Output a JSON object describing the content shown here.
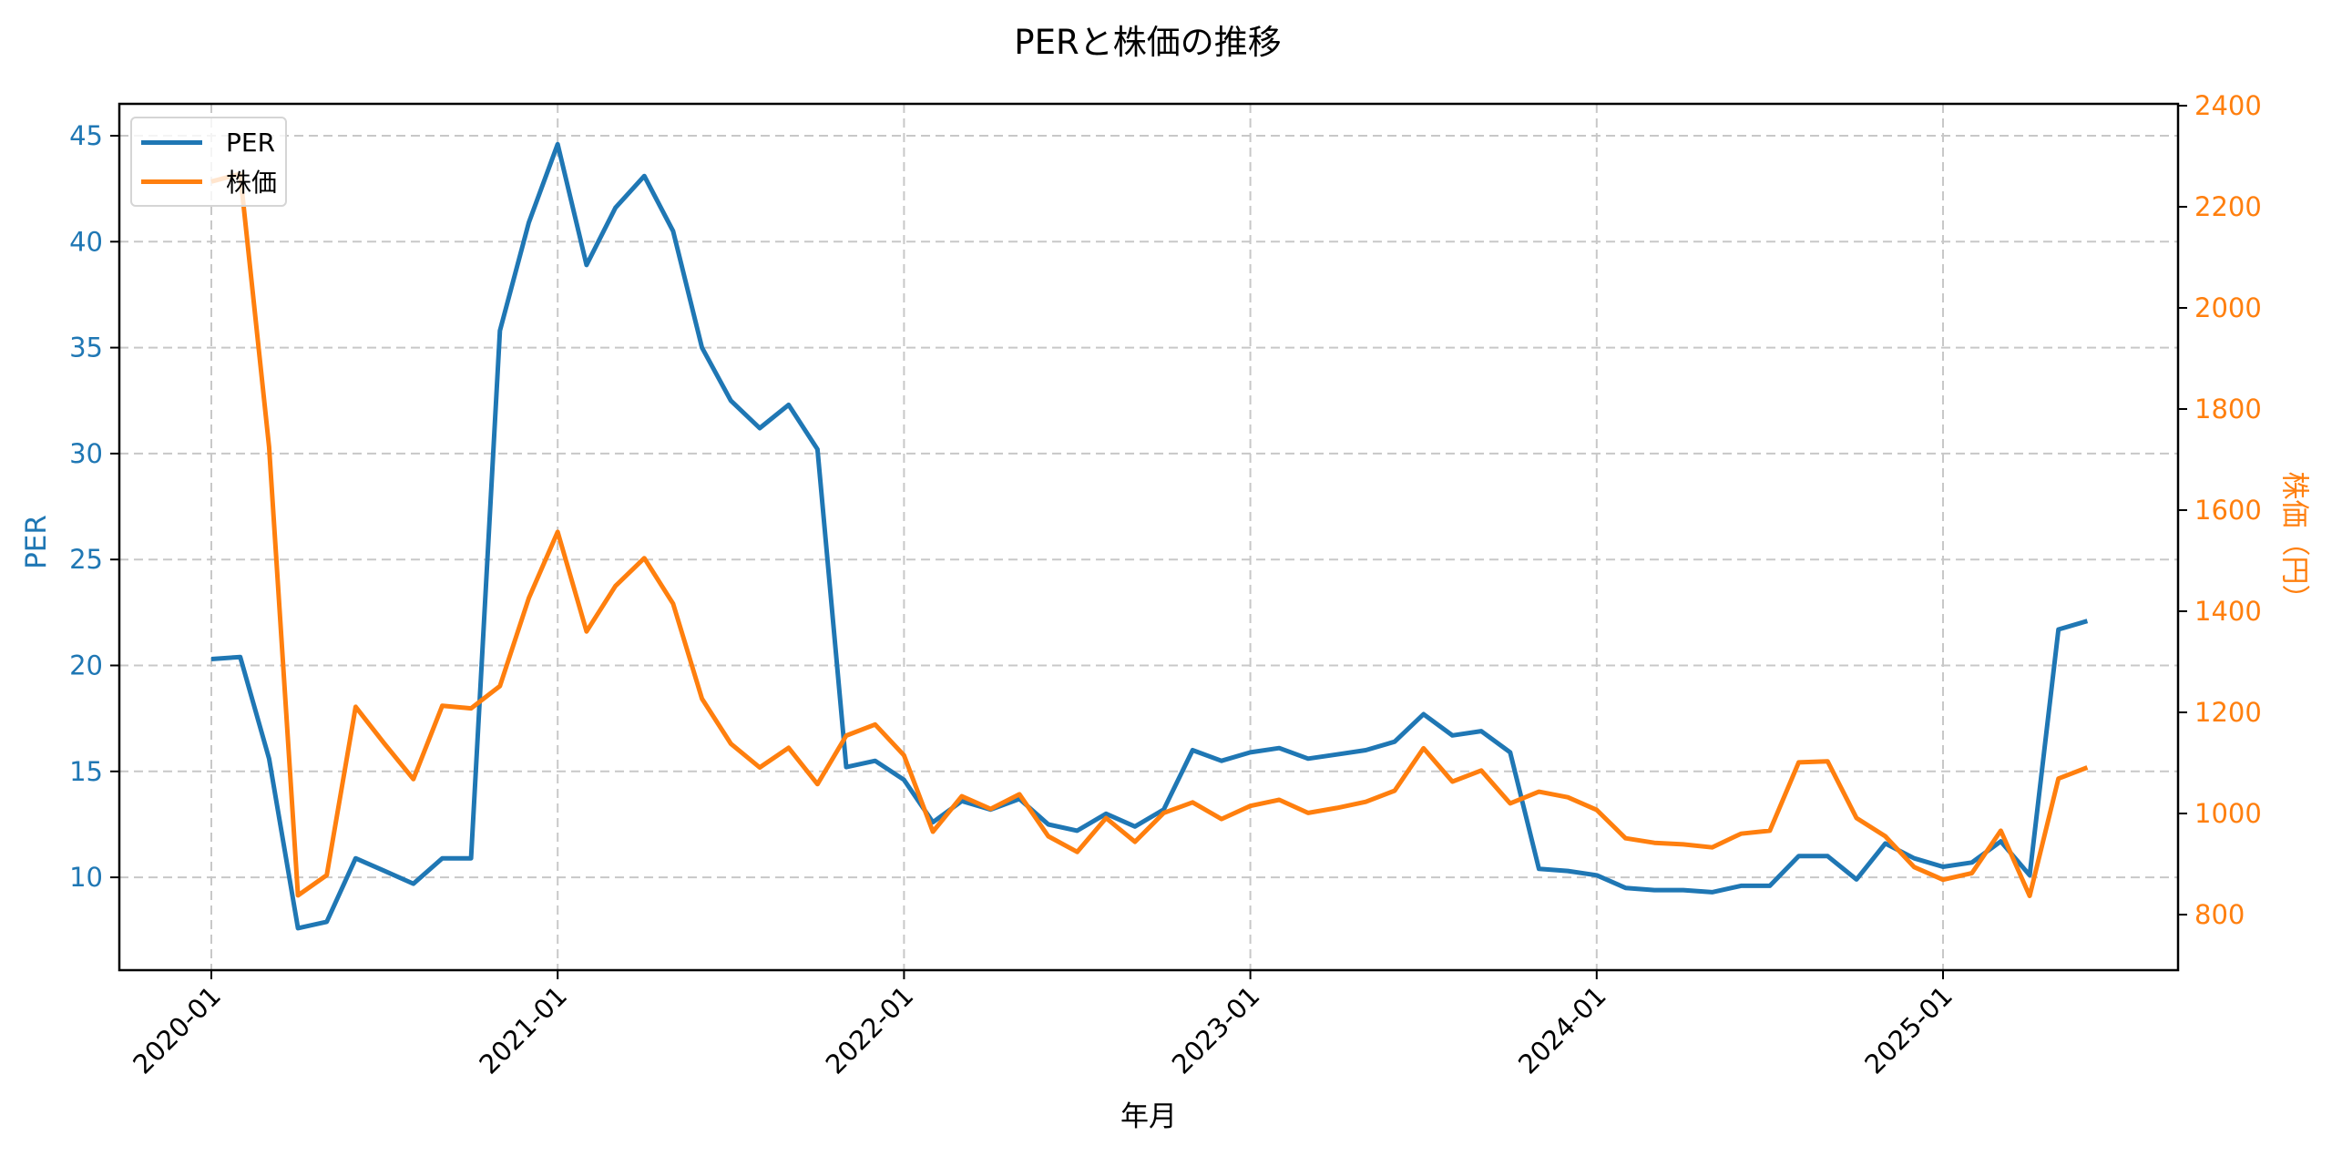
{
  "chart_data": {
    "type": "line",
    "title": "PERと株価の推移",
    "xlabel": "年月",
    "ylabel": "PER",
    "ylabel_right": "株価（円）",
    "x_tick_labels": [
      "2020-01",
      "2021-01",
      "2022-01",
      "2023-01",
      "2024-01",
      "2025-01"
    ],
    "y_ticks_left": [
      10,
      15,
      20,
      25,
      30,
      35,
      40,
      45
    ],
    "y_ticks_right": [
      800,
      1000,
      1200,
      1400,
      1600,
      1800,
      2000,
      2200,
      2400
    ],
    "ylim_left": [
      5.6,
      46.6
    ],
    "ylim_right": [
      690,
      2405
    ],
    "grid": true,
    "legend_position": "upper left",
    "x": [
      "2020-01",
      "2020-02",
      "2020-03",
      "2020-04",
      "2020-05",
      "2020-06",
      "2020-07",
      "2020-08",
      "2020-09",
      "2020-10",
      "2020-11",
      "2020-12",
      "2021-01",
      "2021-02",
      "2021-03",
      "2021-04",
      "2021-05",
      "2021-06",
      "2021-07",
      "2021-08",
      "2021-09",
      "2021-10",
      "2021-11",
      "2021-12",
      "2022-01",
      "2022-02",
      "2022-03",
      "2022-04",
      "2022-05",
      "2022-06",
      "2022-07",
      "2022-08",
      "2022-09",
      "2022-10",
      "2022-11",
      "2022-12",
      "2023-01",
      "2023-02",
      "2023-03",
      "2023-04",
      "2023-05",
      "2023-06",
      "2023-07",
      "2023-08",
      "2023-09",
      "2023-10",
      "2023-11",
      "2023-12",
      "2024-01",
      "2024-02",
      "2024-03",
      "2024-04",
      "2024-05",
      "2024-06",
      "2024-07",
      "2024-08",
      "2024-09",
      "2024-10",
      "2024-11",
      "2024-12",
      "2025-01",
      "2025-02",
      "2025-03",
      "2025-04",
      "2025-05",
      "2025-06"
    ],
    "series": [
      {
        "name": "PER",
        "axis": "left",
        "color": "#1f77b4",
        "values": [
          20.3,
          20.4,
          15.6,
          7.6,
          7.9,
          10.9,
          10.3,
          9.7,
          10.9,
          10.9,
          35.8,
          40.9,
          44.6,
          38.9,
          41.6,
          43.1,
          40.5,
          35.0,
          32.5,
          31.2,
          32.3,
          30.2,
          15.2,
          15.5,
          14.6,
          12.6,
          13.6,
          13.2,
          13.7,
          12.5,
          12.2,
          13.0,
          12.4,
          13.2,
          16.0,
          15.5,
          15.9,
          16.1,
          15.6,
          15.8,
          16.0,
          16.4,
          17.7,
          16.7,
          16.9,
          15.9,
          10.4,
          10.3,
          10.1,
          9.5,
          9.4,
          9.4,
          9.3,
          9.6,
          9.6,
          11.0,
          11.0,
          9.9,
          11.6,
          10.9,
          10.5,
          10.7,
          11.7,
          10.1,
          21.7,
          22.1
        ]
      },
      {
        "name": "株価",
        "axis": "right",
        "color": "#ff7f0e",
        "values": [
          2250,
          2265,
          1725,
          838,
          878,
          1211,
          1138,
          1068,
          1213,
          1208,
          1252,
          1426,
          1557,
          1360,
          1450,
          1505,
          1415,
          1227,
          1138,
          1091,
          1130,
          1058,
          1154,
          1176,
          1115,
          964,
          1034,
          1009,
          1038,
          955,
          924,
          991,
          944,
          1001,
          1022,
          989,
          1015,
          1027,
          1001,
          1011,
          1023,
          1045,
          1129,
          1063,
          1085,
          1020,
          1043,
          1032,
          1007,
          951,
          942,
          939,
          933,
          960,
          966,
          1101,
          1103,
          991,
          955,
          894,
          869,
          882,
          966,
          837,
          1069,
          1091
        ]
      }
    ]
  },
  "colors": {
    "per": "#1f77b4",
    "price": "#ff7f0e",
    "grid": "#c8c8c8",
    "axis": "#000000"
  },
  "legend": {
    "items": [
      {
        "label": "PER",
        "color": "#1f77b4"
      },
      {
        "label": "株価",
        "color": "#ff7f0e"
      }
    ]
  }
}
